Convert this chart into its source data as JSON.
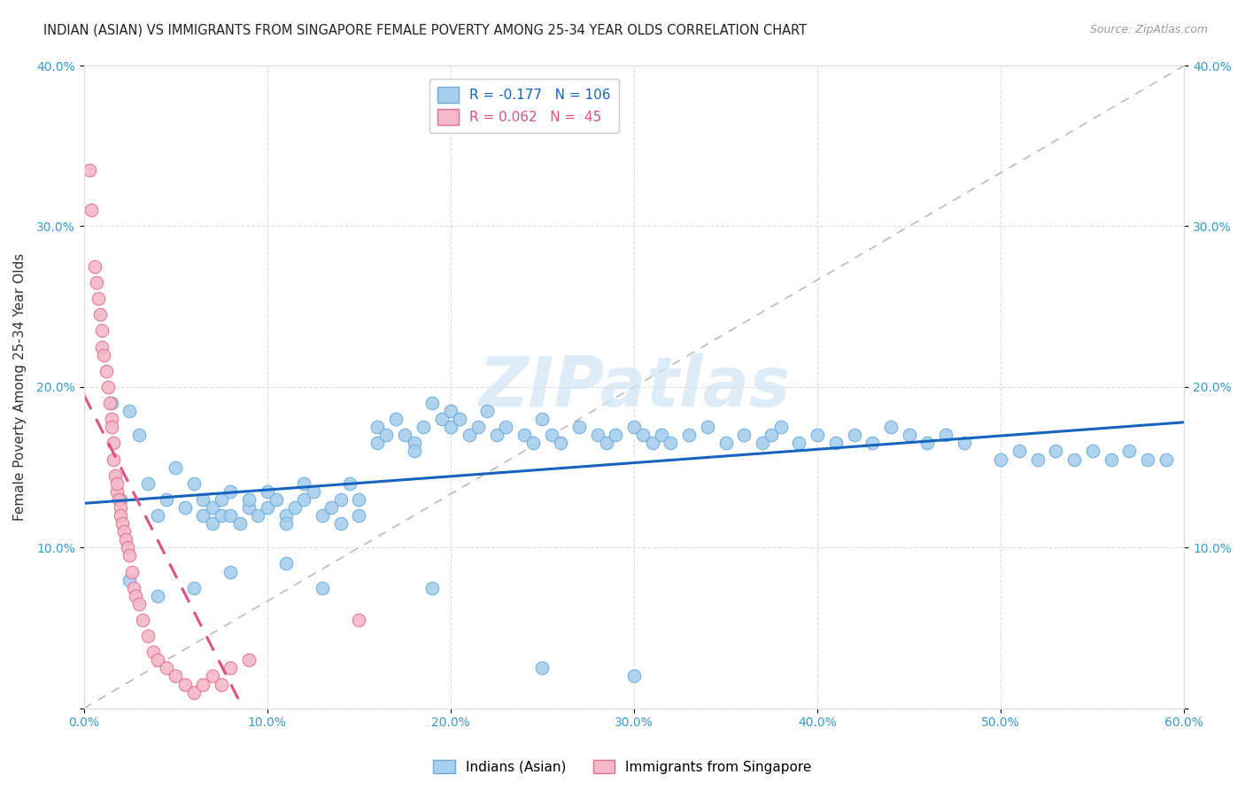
{
  "title": "INDIAN (ASIAN) VS IMMIGRANTS FROM SINGAPORE FEMALE POVERTY AMONG 25-34 YEAR OLDS CORRELATION CHART",
  "source": "Source: ZipAtlas.com",
  "ylabel": "Female Poverty Among 25-34 Year Olds",
  "xlim": [
    0,
    0.6
  ],
  "ylim": [
    0,
    0.4
  ],
  "xticks": [
    0.0,
    0.1,
    0.2,
    0.3,
    0.4,
    0.5,
    0.6
  ],
  "xticklabels": [
    "0.0%",
    "10.0%",
    "20.0%",
    "30.0%",
    "40.0%",
    "50.0%",
    "60.0%"
  ],
  "yticks": [
    0.0,
    0.1,
    0.2,
    0.3,
    0.4
  ],
  "yticklabels": [
    "",
    "10.0%",
    "20.0%",
    "30.0%",
    "40.0%"
  ],
  "blue_R": -0.177,
  "blue_N": 106,
  "pink_R": 0.062,
  "pink_N": 45,
  "blue_face": "#A8CFEE",
  "blue_edge": "#6AAAD8",
  "pink_face": "#F5B8C8",
  "pink_edge": "#E07090",
  "blue_line_color": "#1565C0",
  "pink_line_color": "#E05080",
  "diag_color": "#BBBBBB",
  "watermark_color": "#D0E4F5",
  "background_color": "#FFFFFF",
  "grid_color": "#DDDDDD",
  "blue_scatter_x": [
    0.015,
    0.02,
    0.025,
    0.03,
    0.035,
    0.04,
    0.045,
    0.05,
    0.055,
    0.06,
    0.065,
    0.065,
    0.07,
    0.07,
    0.075,
    0.075,
    0.08,
    0.08,
    0.085,
    0.09,
    0.09,
    0.095,
    0.1,
    0.1,
    0.105,
    0.11,
    0.11,
    0.115,
    0.12,
    0.12,
    0.125,
    0.13,
    0.135,
    0.14,
    0.14,
    0.145,
    0.15,
    0.15,
    0.16,
    0.16,
    0.165,
    0.17,
    0.175,
    0.18,
    0.18,
    0.185,
    0.19,
    0.195,
    0.2,
    0.2,
    0.205,
    0.21,
    0.215,
    0.22,
    0.225,
    0.23,
    0.24,
    0.245,
    0.25,
    0.255,
    0.26,
    0.27,
    0.28,
    0.285,
    0.29,
    0.3,
    0.305,
    0.31,
    0.315,
    0.32,
    0.33,
    0.34,
    0.35,
    0.36,
    0.37,
    0.375,
    0.38,
    0.39,
    0.4,
    0.41,
    0.42,
    0.43,
    0.44,
    0.45,
    0.46,
    0.47,
    0.48,
    0.5,
    0.51,
    0.52,
    0.53,
    0.54,
    0.55,
    0.56,
    0.57,
    0.58,
    0.59,
    0.025,
    0.04,
    0.06,
    0.08,
    0.11,
    0.13,
    0.19,
    0.25,
    0.3
  ],
  "blue_scatter_y": [
    0.19,
    0.13,
    0.185,
    0.17,
    0.14,
    0.12,
    0.13,
    0.15,
    0.125,
    0.14,
    0.13,
    0.12,
    0.125,
    0.115,
    0.13,
    0.12,
    0.135,
    0.12,
    0.115,
    0.125,
    0.13,
    0.12,
    0.135,
    0.125,
    0.13,
    0.12,
    0.115,
    0.125,
    0.14,
    0.13,
    0.135,
    0.12,
    0.125,
    0.13,
    0.115,
    0.14,
    0.13,
    0.12,
    0.175,
    0.165,
    0.17,
    0.18,
    0.17,
    0.165,
    0.16,
    0.175,
    0.19,
    0.18,
    0.175,
    0.185,
    0.18,
    0.17,
    0.175,
    0.185,
    0.17,
    0.175,
    0.17,
    0.165,
    0.18,
    0.17,
    0.165,
    0.175,
    0.17,
    0.165,
    0.17,
    0.175,
    0.17,
    0.165,
    0.17,
    0.165,
    0.17,
    0.175,
    0.165,
    0.17,
    0.165,
    0.17,
    0.175,
    0.165,
    0.17,
    0.165,
    0.17,
    0.165,
    0.175,
    0.17,
    0.165,
    0.17,
    0.165,
    0.155,
    0.16,
    0.155,
    0.16,
    0.155,
    0.16,
    0.155,
    0.16,
    0.155,
    0.155,
    0.08,
    0.07,
    0.075,
    0.085,
    0.09,
    0.075,
    0.075,
    0.025,
    0.02
  ],
  "pink_scatter_x": [
    0.003,
    0.004,
    0.006,
    0.007,
    0.008,
    0.009,
    0.01,
    0.01,
    0.011,
    0.012,
    0.013,
    0.014,
    0.015,
    0.015,
    0.016,
    0.016,
    0.017,
    0.018,
    0.018,
    0.019,
    0.02,
    0.02,
    0.021,
    0.022,
    0.023,
    0.024,
    0.025,
    0.026,
    0.027,
    0.028,
    0.03,
    0.032,
    0.035,
    0.038,
    0.04,
    0.045,
    0.05,
    0.055,
    0.06,
    0.065,
    0.07,
    0.075,
    0.08,
    0.09,
    0.15
  ],
  "pink_scatter_y": [
    0.335,
    0.31,
    0.275,
    0.265,
    0.255,
    0.245,
    0.235,
    0.225,
    0.22,
    0.21,
    0.2,
    0.19,
    0.18,
    0.175,
    0.165,
    0.155,
    0.145,
    0.135,
    0.14,
    0.13,
    0.125,
    0.12,
    0.115,
    0.11,
    0.105,
    0.1,
    0.095,
    0.085,
    0.075,
    0.07,
    0.065,
    0.055,
    0.045,
    0.035,
    0.03,
    0.025,
    0.02,
    0.015,
    0.01,
    0.015,
    0.02,
    0.015,
    0.025,
    0.03,
    0.055
  ]
}
